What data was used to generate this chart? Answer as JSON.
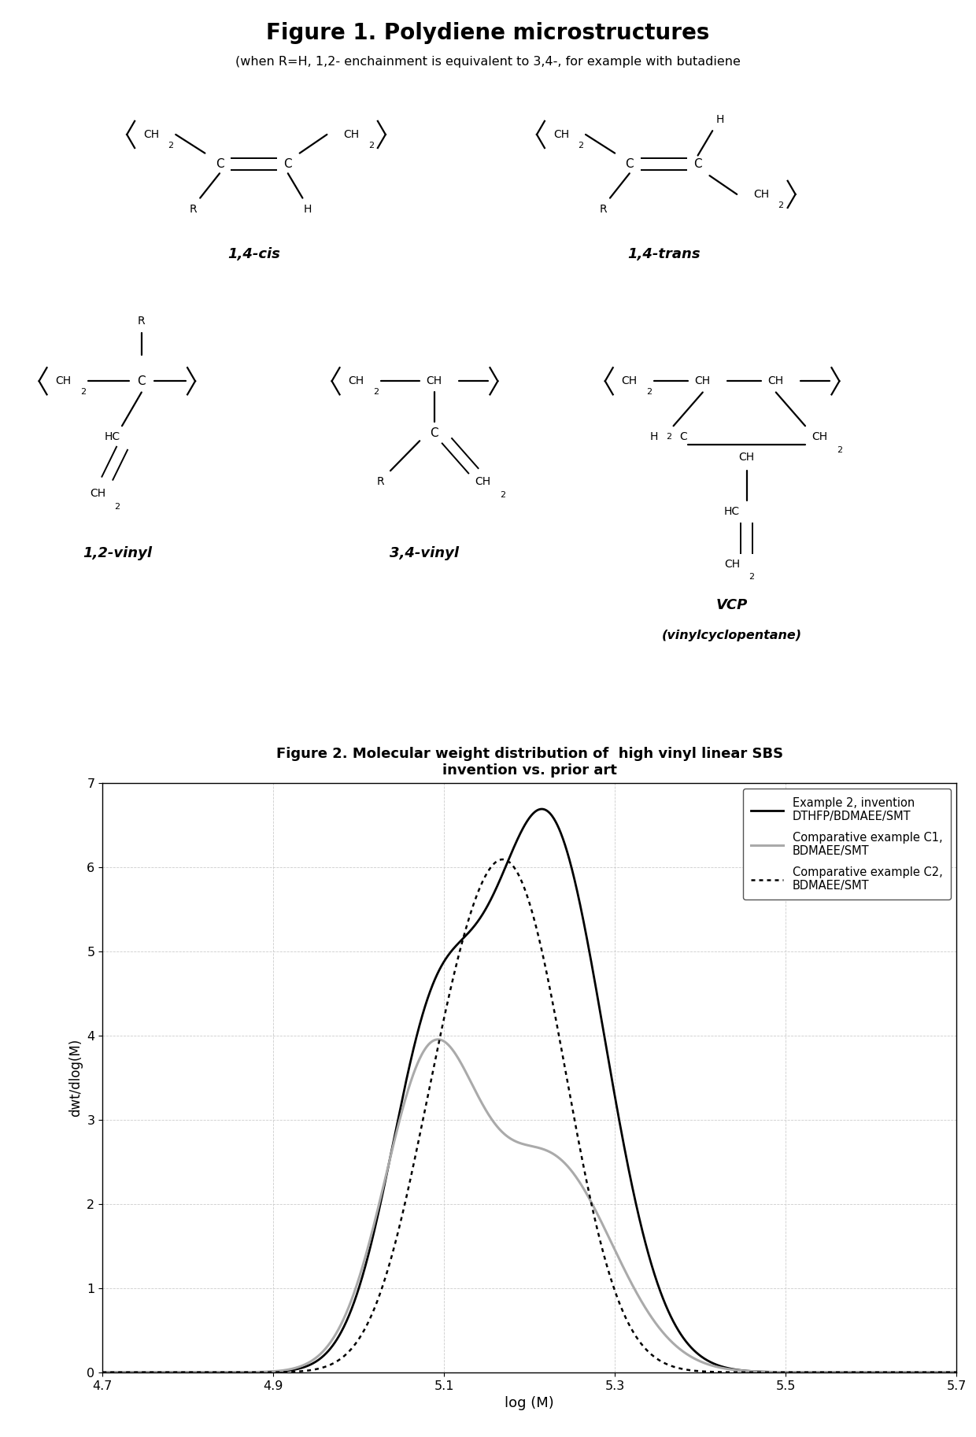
{
  "fig1_title": "Figure 1. Polydiene microstructures",
  "fig1_subtitle": "(when R=H, 1,2- enchainment is equivalent to 3,4-, for example with butadiene",
  "fig2_title": "Figure 2. Molecular weight distribution of  high vinyl linear SBS\ninvention vs. prior art",
  "fig2_xlabel": "log (M)",
  "fig2_ylabel": "dwt/dlog(M)",
  "fig2_xlim": [
    4.7,
    5.7
  ],
  "fig2_ylim": [
    0,
    7
  ],
  "fig2_xticks": [
    4.7,
    4.9,
    5.1,
    5.3,
    5.5,
    5.7
  ],
  "fig2_yticks": [
    0,
    1,
    2,
    3,
    4,
    5,
    6,
    7
  ],
  "legend_entries": [
    "Example 2, invention\nDTHFP/BDMAEE/SMT",
    "Comparative example C1,\nBDMAEE/SMT",
    "Comparative example C2,\nBDMAEE/SMT"
  ],
  "bg_color": "#ffffff",
  "curve1_peaks": [
    [
      5.085,
      0.052,
      3.65
    ],
    [
      5.22,
      0.068,
      6.55
    ]
  ],
  "curve2_peaks": [
    [
      5.083,
      0.054,
      3.55
    ],
    [
      5.225,
      0.072,
      2.5
    ]
  ],
  "curve3_peaks": [
    [
      5.1,
      0.052,
      2.1
    ],
    [
      5.185,
      0.062,
      5.4
    ]
  ]
}
